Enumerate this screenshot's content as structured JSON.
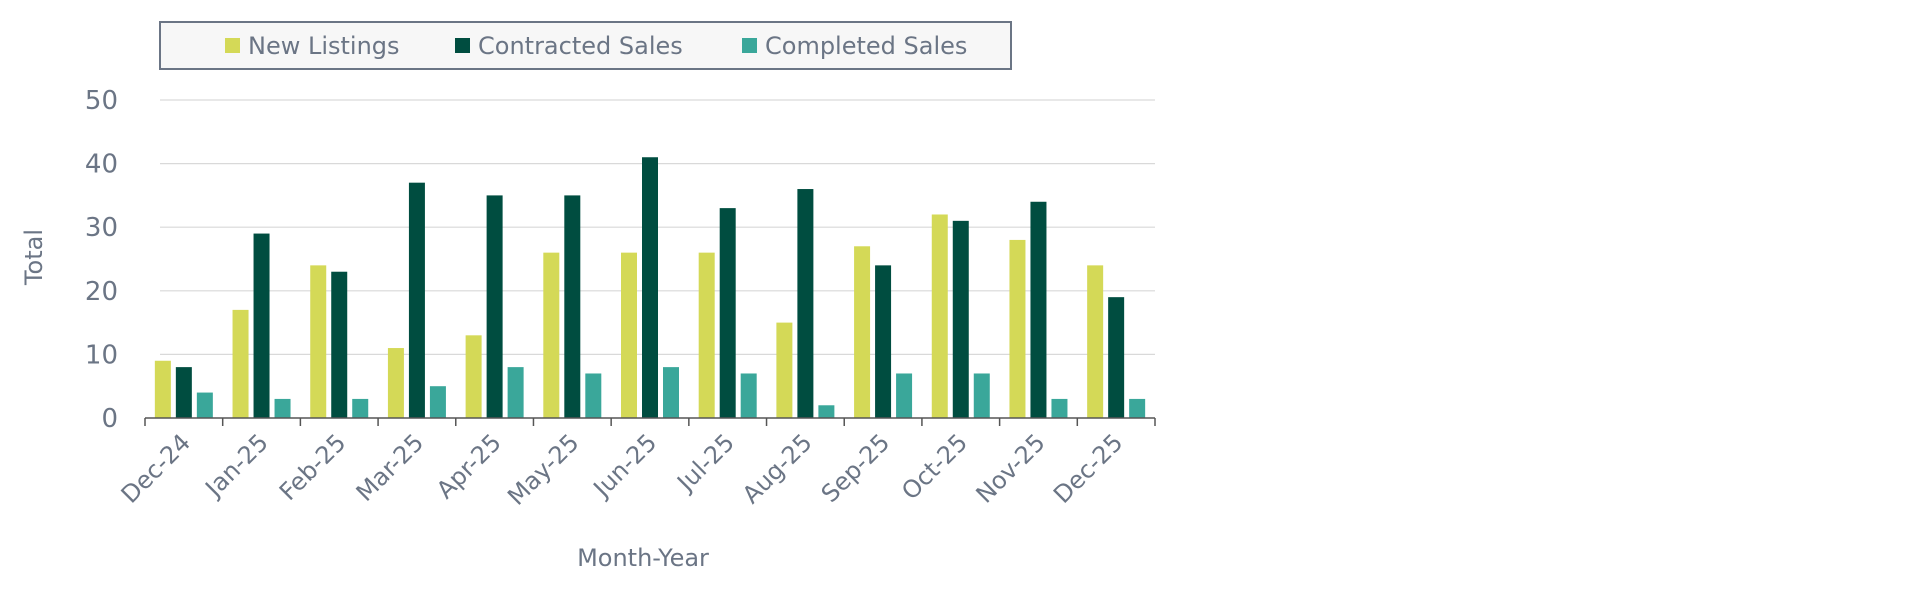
{
  "chart_data": {
    "type": "bar",
    "title": "",
    "xlabel": "Month-Year",
    "ylabel": "Total",
    "ylim": [
      0,
      50
    ],
    "yticks": [
      0,
      10,
      20,
      30,
      40,
      50
    ],
    "grid": true,
    "legend_position": "top",
    "categories": [
      "Dec-24",
      "Jan-25",
      "Feb-25",
      "Mar-25",
      "Apr-25",
      "May-25",
      "Jun-25",
      "Jul-25",
      "Aug-25",
      "Sep-25",
      "Oct-25",
      "Nov-25",
      "Dec-25"
    ],
    "series": [
      {
        "name": "New Listings",
        "color": "#d4d957",
        "values": [
          9,
          17,
          24,
          11,
          13,
          26,
          26,
          26,
          15,
          27,
          32,
          28,
          24
        ]
      },
      {
        "name": "Contracted Sales",
        "color": "#004d40",
        "values": [
          8,
          29,
          23,
          37,
          35,
          35,
          41,
          33,
          36,
          24,
          31,
          34,
          19
        ]
      },
      {
        "name": "Completed Sales",
        "color": "#3aa79a",
        "values": [
          4,
          3,
          3,
          5,
          8,
          7,
          8,
          7,
          2,
          7,
          7,
          3,
          3
        ]
      }
    ]
  },
  "colors": {
    "axis_text": "#6b7585",
    "grid": "#d9d9d9",
    "axis_line": "#555555",
    "legend_border": "#6b7585",
    "legend_bg": "#f7f7f7"
  }
}
